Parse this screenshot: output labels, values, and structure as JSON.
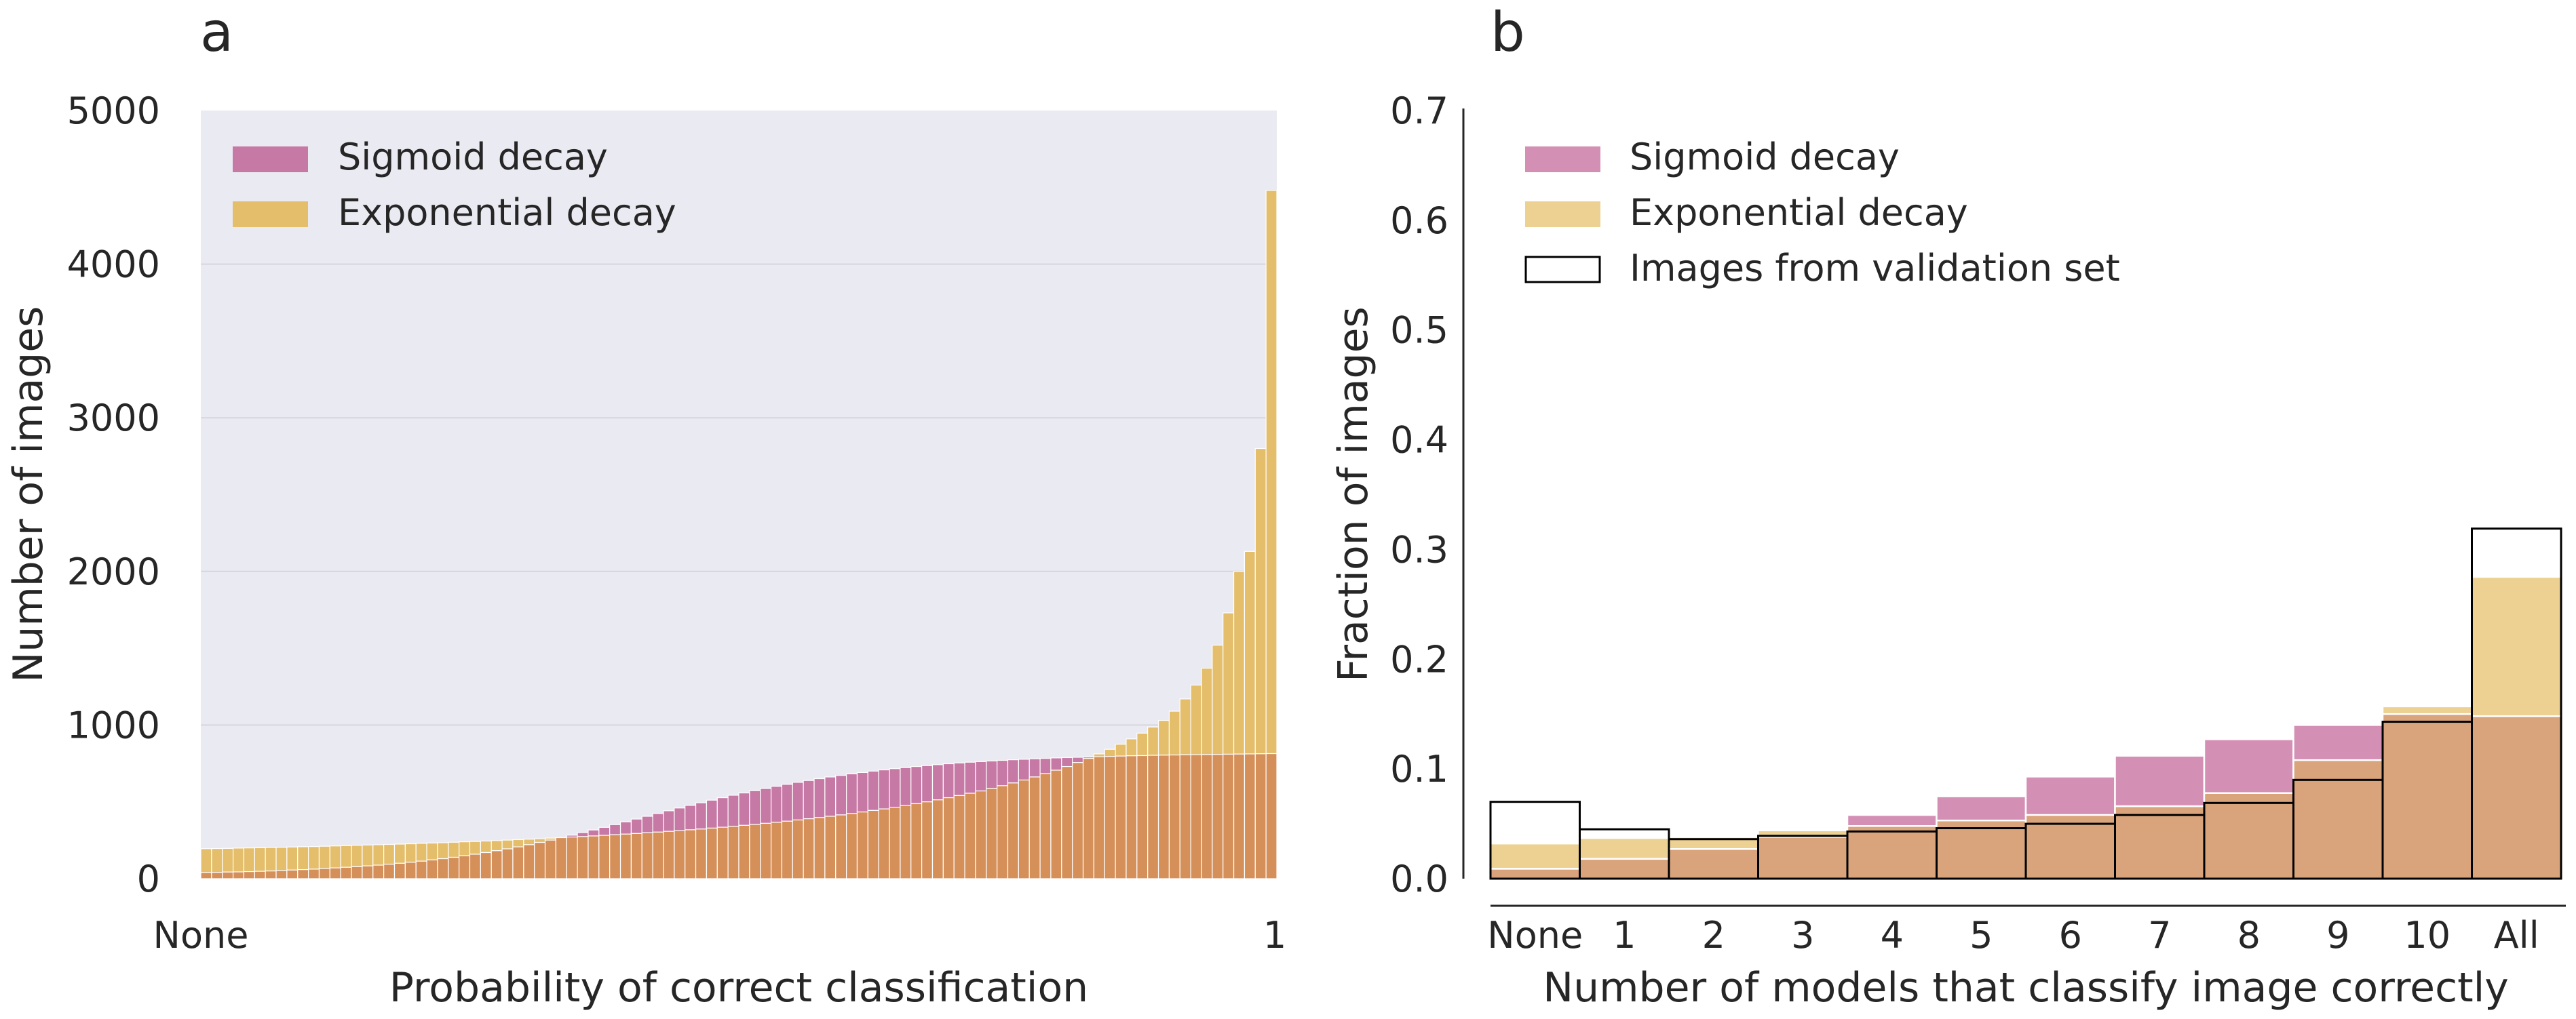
{
  "chart_data": [
    {
      "panel_label": "a",
      "type": "bar",
      "xlabel": "Probability of correct classification",
      "ylabel": "Number of images",
      "ylim": [
        0,
        5000
      ],
      "y_ticks": [
        "0",
        "1000",
        "2000",
        "3000",
        "4000",
        "5000"
      ],
      "x_tick_labels": [
        "None",
        "1"
      ],
      "grid": true,
      "legend_position": "top-left",
      "bin_count": 100,
      "series": [
        {
          "name": "Sigmoid decay",
          "color": "#c779a6",
          "values": [
            40,
            41,
            43,
            44,
            46,
            48,
            50,
            53,
            56,
            59,
            62,
            66,
            70,
            74,
            78,
            83,
            88,
            94,
            100,
            107,
            114,
            122,
            130,
            139,
            149,
            159,
            170,
            182,
            194,
            207,
            221,
            236,
            251,
            267,
            283,
            300,
            317,
            334,
            352,
            370,
            388,
            406,
            424,
            442,
            460,
            477,
            494,
            511,
            527,
            543,
            558,
            573,
            587,
            601,
            614,
            627,
            639,
            651,
            662,
            672,
            682,
            691,
            700,
            708,
            716,
            723,
            730,
            736,
            742,
            748,
            753,
            758,
            762,
            766,
            770,
            774,
            777,
            780,
            783,
            786,
            788,
            790,
            792,
            794,
            796,
            798,
            800,
            801,
            803,
            804,
            805,
            806,
            807,
            808,
            809,
            810,
            811,
            812,
            813,
            814
          ]
        },
        {
          "name": "Exponential decay",
          "color": "#e4be6b",
          "values": [
            195,
            196,
            197,
            199,
            200,
            201,
            203,
            204,
            206,
            208,
            209,
            211,
            213,
            215,
            217,
            219,
            221,
            223,
            225,
            227,
            230,
            232,
            234,
            237,
            240,
            242,
            245,
            248,
            251,
            254,
            257,
            260,
            264,
            267,
            271,
            274,
            278,
            282,
            286,
            290,
            294,
            299,
            303,
            308,
            313,
            318,
            323,
            329,
            335,
            341,
            347,
            353,
            360,
            367,
            374,
            382,
            390,
            398,
            406,
            415,
            424,
            434,
            444,
            454,
            465,
            476,
            488,
            500,
            513,
            527,
            541,
            556,
            571,
            588,
            605,
            623,
            642,
            662,
            684,
            706,
            730,
            756,
            783,
            812,
            842,
            875,
            910,
            947,
            987,
            1030,
            1090,
            1170,
            1260,
            1370,
            1520,
            1730,
            2000,
            2130,
            2800,
            4480
          ]
        }
      ]
    },
    {
      "panel_label": "b",
      "type": "bar",
      "xlabel": "Number of models that classify image correctly",
      "ylabel": "Fraction of images",
      "ylim": [
        0,
        0.7
      ],
      "y_ticks": [
        "0.0",
        "0.1",
        "0.2",
        "0.3",
        "0.4",
        "0.5",
        "0.6",
        "0.7"
      ],
      "categories": [
        "None",
        "1",
        "2",
        "3",
        "4",
        "5",
        "6",
        "7",
        "8",
        "9",
        "10",
        "All"
      ],
      "grid": false,
      "legend_position": "top-left",
      "series": [
        {
          "name": "Sigmoid decay",
          "color": "#d48fb5",
          "values": [
            0.009,
            0.018,
            0.027,
            0.038,
            0.058,
            0.075,
            0.093,
            0.112,
            0.127,
            0.14,
            0.15,
            0.148
          ]
        },
        {
          "name": "Exponential decay",
          "color": "#ecd193",
          "values": [
            0.032,
            0.037,
            0.038,
            0.044,
            0.048,
            0.053,
            0.058,
            0.066,
            0.078,
            0.108,
            0.157,
            0.275
          ]
        },
        {
          "name": "Images from validation set",
          "color": "#000000",
          "values": [
            0.07,
            0.045,
            0.036,
            0.039,
            0.043,
            0.046,
            0.05,
            0.058,
            0.069,
            0.09,
            0.143,
            0.319
          ]
        }
      ]
    }
  ]
}
